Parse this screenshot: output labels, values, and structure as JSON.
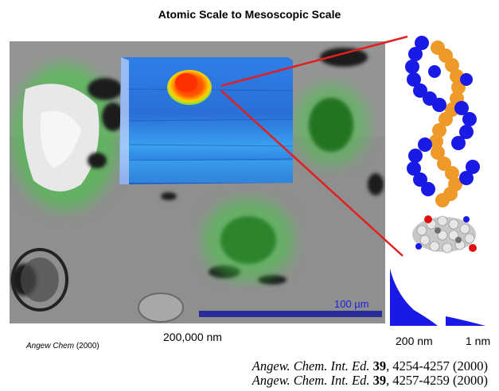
{
  "title": "Atomic Scale to Mesoscopic Scale",
  "scale_bar_label": "100 µm",
  "captions": {
    "micro_scale": "200,000 nm",
    "nano_scale": "200 nm",
    "atomic_scale": "1 nm"
  },
  "citation_small": {
    "journal": "Angew Chem",
    "year": "(2000)"
  },
  "references": [
    {
      "journal": "Angew. Chem. Int. Ed.",
      "volume": "39",
      "pages": ", 4254-4257 (2000)"
    },
    {
      "journal": "Angew. Chem. Int. Ed.",
      "volume": "39",
      "pages": ", 4257-4259 (2000)"
    }
  ],
  "colors": {
    "connector": "#e02020",
    "scale_bar": "#2a2a9a",
    "fluorescence": "#3ccf3c",
    "helix_a": "#1a1ae6",
    "helix_b": "#ef9a28"
  }
}
